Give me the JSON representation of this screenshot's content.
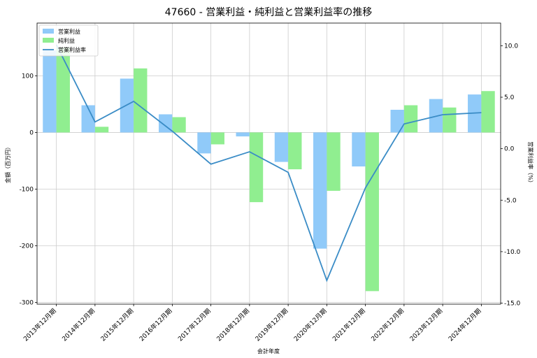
{
  "chart_data": {
    "type": "bar",
    "title": "47660 - 営業利益・純利益と営業利益率の推移",
    "xlabel": "会計年度",
    "ylabel_left": "金額（百万円）",
    "ylabel_right": "営業利益率（%）",
    "categories": [
      "2013年12月期",
      "2014年12月期",
      "2015年12月期",
      "2016年12月期",
      "2017年12月期",
      "2018年12月期",
      "2019年12月期",
      "2020年12月期",
      "2021年12月期",
      "2022年12月期",
      "2023年12月期",
      "2024年12月期"
    ],
    "series": [
      {
        "name": "営業利益",
        "kind": "bar",
        "axis": "left",
        "color": "#90caf9",
        "values": [
          145,
          48,
          95,
          32,
          -37,
          -7,
          -52,
          -205,
          -60,
          40,
          59,
          67
        ]
      },
      {
        "name": "純利益",
        "kind": "bar",
        "axis": "left",
        "color": "#90ee90",
        "values": [
          150,
          10,
          113,
          27,
          -21,
          -123,
          -65,
          -103,
          -280,
          48,
          44,
          73
        ]
      },
      {
        "name": "営業利益率",
        "kind": "line",
        "axis": "right",
        "color": "#3a8cc6",
        "values": [
          10.1,
          2.6,
          4.6,
          1.7,
          -1.5,
          -0.3,
          -2.3,
          -12.8,
          -3.8,
          2.4,
          3.3,
          3.5
        ]
      }
    ],
    "ylim_left": [
      -303,
      193
    ],
    "ylim_right": [
      -15.1,
      12.2
    ],
    "yticks_left": [
      {
        "v": 100,
        "t": "100"
      },
      {
        "v": 0,
        "t": "0"
      },
      {
        "v": -100,
        "t": "-100"
      },
      {
        "v": -200,
        "t": "-200"
      },
      {
        "v": -300,
        "t": "-300"
      }
    ],
    "yticks_right": [
      {
        "v": 10,
        "t": "10.0"
      },
      {
        "v": 5,
        "t": "5.0"
      },
      {
        "v": 0,
        "t": "0.0"
      },
      {
        "v": -5,
        "t": "-5.0"
      },
      {
        "v": -10,
        "t": "-10.0"
      },
      {
        "v": -15,
        "t": "-15.0"
      }
    ],
    "grid": true,
    "legend": "top-left"
  }
}
